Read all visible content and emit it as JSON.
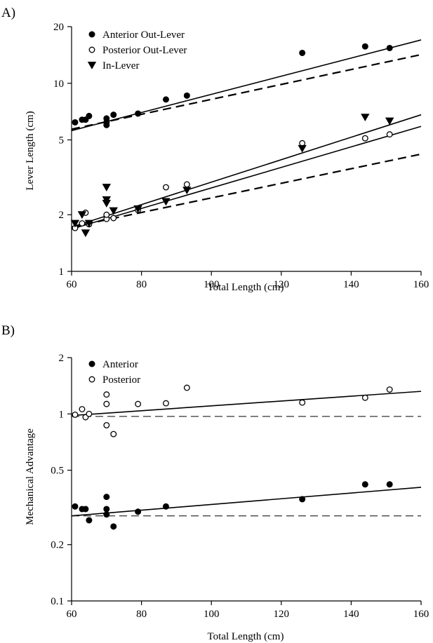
{
  "chart_data": [
    {
      "panel_label": "A)",
      "type": "scatter",
      "xlabel": "Total Length (cm)",
      "ylabel": "Lever Length (cm)",
      "xlim": [
        60,
        160
      ],
      "ylim": [
        1,
        20
      ],
      "yscale": "log",
      "xticks": [
        "60",
        "80",
        "100",
        "120",
        "140",
        "160"
      ],
      "yticks": [
        "1",
        "2",
        "5",
        "10",
        "20"
      ],
      "xtick_values": [
        60,
        80,
        100,
        120,
        140,
        160
      ],
      "ytick_values": [
        1,
        2,
        5,
        10,
        20
      ],
      "legend_position": "top-left",
      "series": [
        {
          "name": "Anterior Out-Lever",
          "marker": "filled-circle",
          "points": [
            [
              61,
              6.2
            ],
            [
              63,
              6.4
            ],
            [
              64,
              6.4
            ],
            [
              65,
              6.7
            ],
            [
              70,
              6.5
            ],
            [
              70,
              6.0
            ],
            [
              70,
              6.2
            ],
            [
              72,
              6.8
            ],
            [
              79,
              6.9
            ],
            [
              87,
              8.2
            ],
            [
              93,
              8.6
            ],
            [
              126,
              14.5
            ],
            [
              144,
              15.7
            ],
            [
              151,
              15.4
            ]
          ],
          "fit": {
            "x": [
              60,
              160
            ],
            "y": [
              5.6,
              17.0
            ],
            "style": "solid"
          },
          "fit_dashed": {
            "x": [
              60,
              160
            ],
            "y": [
              5.7,
              14.2
            ],
            "style": "dashed"
          }
        },
        {
          "name": "Posterior Out-Lever",
          "marker": "open-circle",
          "points": [
            [
              61,
              1.7
            ],
            [
              63,
              1.8
            ],
            [
              64,
              2.05
            ],
            [
              65,
              1.78
            ],
            [
              70,
              1.9
            ],
            [
              70,
              2.0
            ],
            [
              72,
              1.92
            ],
            [
              79,
              2.12
            ],
            [
              87,
              2.8
            ],
            [
              93,
              2.9
            ],
            [
              126,
              4.8
            ],
            [
              144,
              5.1
            ],
            [
              151,
              5.35
            ]
          ],
          "fit": {
            "x": [
              60,
              160
            ],
            "y": [
              1.68,
              5.9
            ],
            "style": "solid"
          }
        },
        {
          "name": "In-Lever",
          "marker": "filled-triangle-down",
          "points": [
            [
              61,
              1.8
            ],
            [
              63,
              2.0
            ],
            [
              64,
              1.6
            ],
            [
              65,
              1.8
            ],
            [
              70,
              2.8
            ],
            [
              70,
              2.4
            ],
            [
              70,
              2.3
            ],
            [
              72,
              2.1
            ],
            [
              79,
              2.15
            ],
            [
              87,
              2.35
            ],
            [
              93,
              2.7
            ],
            [
              126,
              4.5
            ],
            [
              144,
              6.6
            ],
            [
              151,
              6.3
            ]
          ],
          "fit": {
            "x": [
              60,
              160
            ],
            "y": [
              1.72,
              6.8
            ],
            "style": "solid"
          },
          "fit_dashed": {
            "x": [
              60,
              160
            ],
            "y": [
              1.72,
              4.2
            ],
            "style": "dashed"
          }
        }
      ]
    },
    {
      "panel_label": "B)",
      "type": "scatter",
      "xlabel": "Total Length (cm)",
      "ylabel": "Mechanical Advantage",
      "xlim": [
        60,
        160
      ],
      "ylim": [
        0.1,
        2
      ],
      "yscale": "log",
      "xticks": [
        "60",
        "80",
        "100",
        "120",
        "140",
        "160"
      ],
      "yticks": [
        "0.1",
        "0.2",
        "0.5",
        "1",
        "2"
      ],
      "xtick_values": [
        60,
        80,
        100,
        120,
        140,
        160
      ],
      "ytick_values": [
        0.1,
        0.2,
        0.5,
        1,
        2
      ],
      "legend_position": "top-left",
      "series": [
        {
          "name": "Anterior",
          "marker": "filled-circle",
          "points": [
            [
              61,
              0.32
            ],
            [
              63,
              0.31
            ],
            [
              64,
              0.31
            ],
            [
              65,
              0.27
            ],
            [
              70,
              0.36
            ],
            [
              70,
              0.31
            ],
            [
              70,
              0.29
            ],
            [
              72,
              0.25
            ],
            [
              79,
              0.3
            ],
            [
              87,
              0.32
            ],
            [
              126,
              0.35
            ],
            [
              144,
              0.42
            ],
            [
              151,
              0.42
            ]
          ],
          "fit": {
            "x": [
              60,
              160
            ],
            "y": [
              0.285,
              0.405
            ],
            "style": "solid"
          },
          "reference": {
            "y": 0.285,
            "style": "dashed"
          }
        },
        {
          "name": "Posterior",
          "marker": "open-circle",
          "points": [
            [
              61,
              0.99
            ],
            [
              63,
              1.06
            ],
            [
              64,
              0.96
            ],
            [
              65,
              1.0
            ],
            [
              70,
              1.27
            ],
            [
              70,
              1.13
            ],
            [
              70,
              0.87
            ],
            [
              72,
              0.78
            ],
            [
              79,
              1.13
            ],
            [
              87,
              1.14
            ],
            [
              93,
              1.38
            ],
            [
              126,
              1.15
            ],
            [
              144,
              1.22
            ],
            [
              151,
              1.35
            ]
          ],
          "fit": {
            "x": [
              60,
              160
            ],
            "y": [
              0.98,
              1.32
            ],
            "style": "solid"
          },
          "reference": {
            "y": 0.97,
            "style": "dashed"
          }
        }
      ]
    }
  ]
}
